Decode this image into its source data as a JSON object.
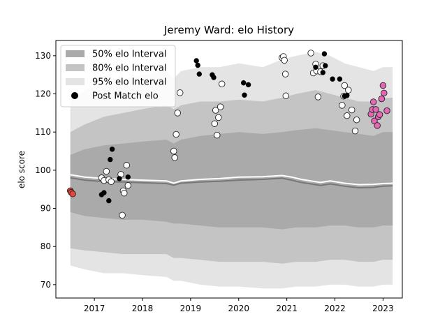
{
  "chart_data": {
    "type": "scatter",
    "title": "Jeremy Ward: elo History",
    "xlabel": "",
    "ylabel": "elo score",
    "xlim": [
      2016.2,
      2023.4
    ],
    "ylim": [
      66.5,
      134.0
    ],
    "x_ticks": [
      2017,
      2018,
      2019,
      2020,
      2021,
      2022,
      2023
    ],
    "y_ticks": [
      70,
      80,
      90,
      100,
      110,
      120,
      130
    ],
    "grid": false,
    "legend": {
      "placement": "top-left",
      "entries": [
        {
          "label": "50% elo Interval",
          "kind": "band",
          "color": "#aaaaaa"
        },
        {
          "label": "80% elo Interval",
          "kind": "band",
          "color": "#c4c4c4"
        },
        {
          "label": "95% elo Interval",
          "kind": "band",
          "color": "#e4e4e4"
        },
        {
          "label": "Post Match elo",
          "kind": "marker",
          "color": "#000000"
        }
      ]
    },
    "bands": {
      "x": [
        2016.5,
        2016.8,
        2017.2,
        2017.6,
        2018.0,
        2018.5,
        2018.65,
        2018.8,
        2019.2,
        2019.6,
        2020.0,
        2020.5,
        2020.9,
        2021.2,
        2021.6,
        2021.9,
        2022.2,
        2022.5,
        2022.8,
        2023.0,
        2023.2
      ],
      "p95": {
        "upper": [
          118,
          121,
          123,
          124,
          125,
          126,
          124,
          126,
          127,
          127,
          128,
          127,
          129,
          130,
          131,
          130,
          128,
          127,
          126,
          127,
          127
        ],
        "lower": [
          75,
          74,
          73,
          73,
          72.5,
          72,
          71,
          71,
          70,
          69.5,
          69.5,
          69,
          69,
          69.5,
          69.5,
          70,
          70,
          69.5,
          69.5,
          70,
          70
        ]
      },
      "p80": {
        "upper": [
          110,
          112,
          114,
          115,
          116,
          117,
          116,
          117,
          118,
          118,
          118.5,
          118,
          119,
          120,
          121,
          120,
          119,
          118,
          118,
          119,
          119
        ],
        "lower": [
          79.5,
          79,
          78.5,
          78,
          78,
          78,
          77,
          77,
          76.5,
          76,
          76,
          76,
          75.5,
          76,
          76,
          76.5,
          76.5,
          76,
          76,
          76.5,
          76.5
        ]
      },
      "p50": {
        "upper": [
          104,
          105.5,
          106.5,
          107,
          107.5,
          108,
          107,
          108,
          109,
          109.5,
          110,
          109.5,
          110,
          110.5,
          111,
          110.5,
          110,
          109.5,
          109,
          110,
          110
        ],
        "lower": [
          89,
          88,
          87.5,
          87,
          87,
          86.5,
          86,
          86,
          85.5,
          85,
          85,
          85,
          84.5,
          85,
          85,
          85.5,
          85.5,
          85,
          85,
          85.5,
          85.5
        ]
      }
    },
    "lines": {
      "mean": {
        "x": [
          2016.5,
          2016.8,
          2017.2,
          2017.6,
          2018.0,
          2018.5,
          2018.65,
          2018.8,
          2019.2,
          2019.6,
          2020.0,
          2020.5,
          2020.9,
          2021.1,
          2021.3,
          2021.5,
          2021.7,
          2021.9,
          2022.2,
          2022.5,
          2022.8,
          2023.0,
          2023.2
        ],
        "y": [
          98.8,
          98.2,
          97.8,
          97.6,
          97.4,
          97.2,
          96.6,
          97.2,
          97.6,
          97.8,
          98.2,
          98.3,
          98.6,
          98.2,
          97.6,
          97.2,
          96.8,
          97.2,
          96.6,
          96.2,
          96.3,
          96.5,
          96.6
        ]
      },
      "median": {
        "x": [
          2016.5,
          2016.8,
          2017.2,
          2017.6,
          2018.0,
          2018.5,
          2018.65,
          2018.8,
          2019.2,
          2019.6,
          2020.0,
          2020.5,
          2020.9,
          2021.1,
          2021.3,
          2021.5,
          2021.7,
          2021.9,
          2022.2,
          2022.5,
          2022.8,
          2023.0,
          2023.2
        ],
        "y": [
          98.0,
          97.4,
          97.0,
          96.9,
          96.7,
          96.5,
          96.1,
          96.6,
          96.9,
          97.1,
          97.4,
          97.6,
          97.9,
          97.4,
          96.8,
          96.4,
          96.0,
          96.4,
          95.8,
          95.4,
          95.5,
          95.8,
          95.9
        ]
      }
    },
    "series": [
      {
        "color": "#ffffff",
        "x": [
          2017.15,
          2017.2,
          2017.25,
          2017.3,
          2017.35,
          2017.55,
          2017.6,
          2017.62,
          2017.67,
          2017.7,
          2017.58,
          2018.65,
          2018.67,
          2018.7,
          2018.73,
          2018.78,
          2019.5,
          2019.52,
          2019.55,
          2019.58,
          2019.62,
          2019.65,
          2020.9,
          2020.93,
          2020.95,
          2020.97,
          2020.98,
          2021.5,
          2021.55,
          2021.6,
          2021.62,
          2021.65,
          2021.7,
          2021.75,
          2022.15,
          2022.18,
          2022.2,
          2022.25,
          2022.28,
          2022.35,
          2022.42,
          2022.45
        ],
        "y": [
          98.0,
          97.3,
          99.7,
          97.5,
          97.0,
          98.9,
          94.6,
          94.0,
          101.3,
          96.0,
          88.2,
          105.0,
          103.3,
          109.4,
          115.0,
          120.3,
          112.2,
          115.7,
          109.2,
          113.8,
          116.6,
          122.6,
          129.5,
          129.8,
          128.8,
          125.2,
          119.5,
          130.7,
          125.5,
          127.8,
          126.0,
          119.2,
          125.8,
          127.4,
          117.0,
          119.4,
          122.2,
          114.3,
          121.0,
          115.8,
          110.3,
          113.2
        ]
      },
      {
        "color": "#000000",
        "x": [
          2017.15,
          2017.2,
          2017.3,
          2017.33,
          2017.37,
          2017.52,
          2017.7,
          2019.12,
          2019.15,
          2019.18,
          2019.45,
          2019.48,
          2020.1,
          2020.12,
          2020.2,
          2021.6,
          2021.75,
          2021.78,
          2021.8,
          2021.95,
          2022.1,
          2022.2,
          2022.25
        ],
        "y": [
          93.6,
          94.1,
          92.0,
          102.8,
          105.5,
          97.8,
          98.2,
          128.7,
          127.5,
          125.2,
          125.0,
          124.3,
          122.9,
          119.7,
          122.4,
          127.0,
          125.6,
          130.5,
          127.4,
          123.9,
          123.9,
          119.4,
          119.6
        ]
      },
      {
        "color": "#e8453c",
        "x": [
          2016.5,
          2016.52,
          2016.55
        ],
        "y": [
          94.6,
          94.2,
          93.8
        ]
      },
      {
        "color": "#e566b5",
        "x": [
          2022.75,
          2022.78,
          2022.8,
          2022.82,
          2022.85,
          2022.88,
          2022.9,
          2022.93,
          2022.97,
          2023.0,
          2023.02,
          2023.08
        ],
        "y": [
          114.7,
          115.9,
          117.9,
          112.9,
          115.9,
          111.7,
          114.0,
          114.6,
          118.7,
          122.2,
          120.2,
          115.6
        ]
      }
    ]
  }
}
